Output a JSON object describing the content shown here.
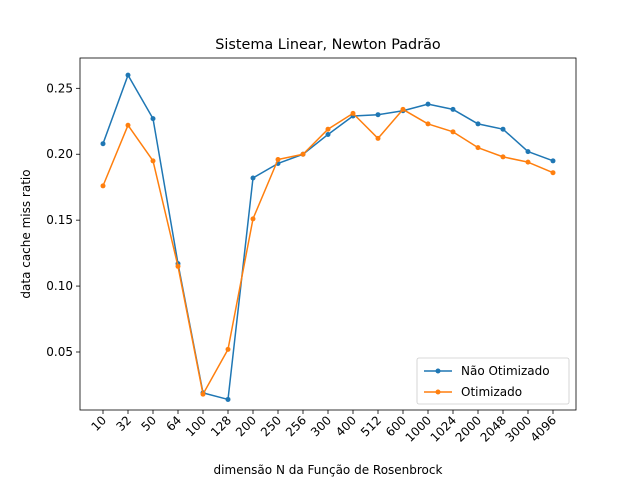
{
  "chart_data": {
    "type": "line",
    "title": "Sistema Linear, Newton Padrão",
    "xlabel": "dimensão N da Função de Rosenbrock",
    "ylabel": "data cache miss ratio",
    "categories": [
      "10",
      "32",
      "50",
      "64",
      "100",
      "128",
      "200",
      "250",
      "256",
      "300",
      "400",
      "512",
      "600",
      "1000",
      "1024",
      "2000",
      "2048",
      "3000",
      "4096"
    ],
    "yticks": [
      "0.05",
      "0.10",
      "0.15",
      "0.20",
      "0.25"
    ],
    "ylim": [
      0.006,
      0.273
    ],
    "grid": false,
    "legend_position": "lower-right",
    "series": [
      {
        "name": "Não Otimizado",
        "color": "#1f77b4",
        "values": [
          0.208,
          0.26,
          0.227,
          0.117,
          0.019,
          0.014,
          0.182,
          0.193,
          0.2,
          0.215,
          0.229,
          0.23,
          0.233,
          0.238,
          0.234,
          0.223,
          0.219,
          0.202,
          0.195
        ]
      },
      {
        "name": "Otimizado",
        "color": "#ff7f0e",
        "values": [
          0.176,
          0.222,
          0.195,
          0.115,
          0.018,
          0.052,
          0.151,
          0.196,
          0.2,
          0.219,
          0.231,
          0.212,
          0.234,
          0.223,
          0.217,
          0.205,
          0.198,
          0.194,
          0.186
        ]
      }
    ]
  }
}
